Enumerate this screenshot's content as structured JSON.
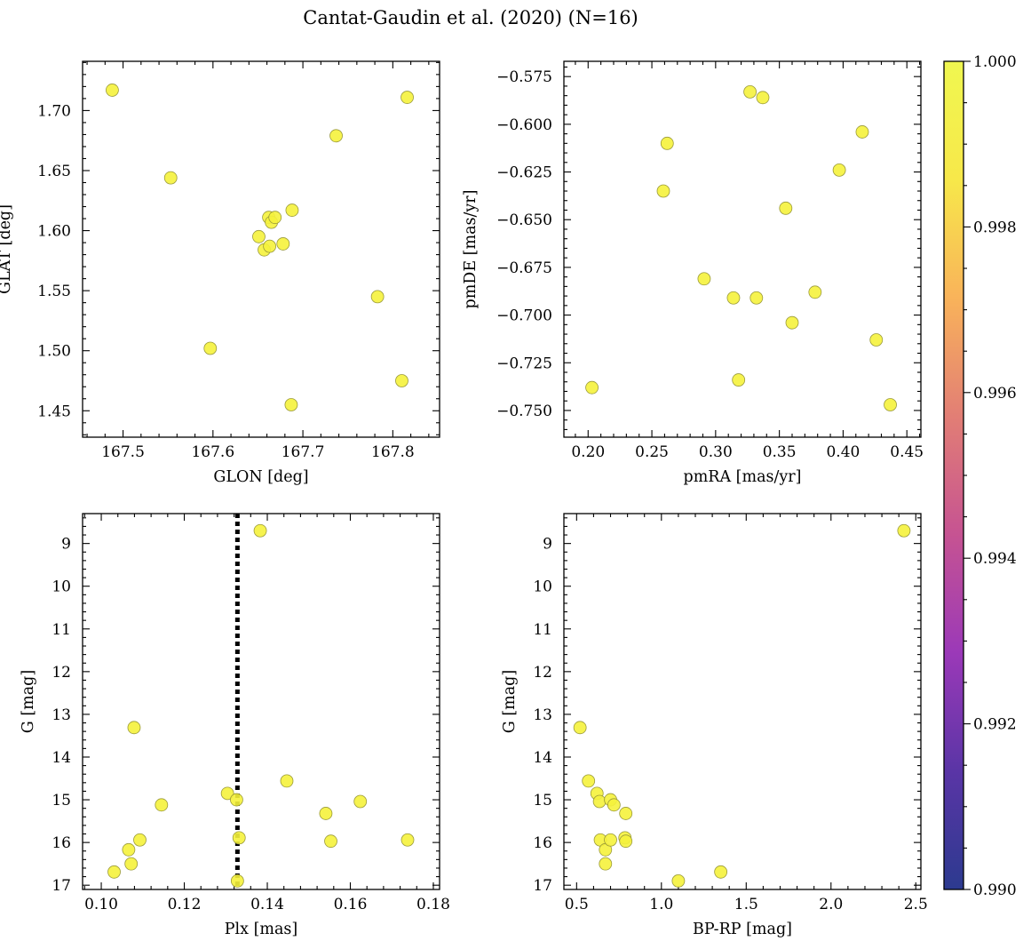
{
  "title": "Cantat-Gaudin et al. (2020) (N=16)",
  "colors": {
    "marker_fill": "#f5f23c",
    "marker_edge": "#9a9a3a",
    "ref_line": "#000000"
  },
  "colorbar": {
    "min": 0.99,
    "max": 1.0,
    "ticks": [
      0.99,
      0.992,
      0.994,
      0.996,
      0.998,
      1.0
    ],
    "labels": [
      "0.990",
      "0.992",
      "0.994",
      "0.996",
      "0.998",
      "1.000"
    ],
    "colormap": "plasma",
    "stops": [
      "#2c3a8f",
      "#5a35a6",
      "#9b39b8",
      "#c65392",
      "#e27e75",
      "#f9b35a",
      "#f7e84a",
      "#f0f750"
    ]
  },
  "chart_data": [
    {
      "type": "scatter",
      "xlabel": "GLON [deg]",
      "ylabel": "GLAT [deg]",
      "xlim": [
        167.455,
        167.852
      ],
      "ylim": [
        1.428,
        1.741
      ],
      "xticks": [
        167.5,
        167.6,
        167.7,
        167.8
      ],
      "xtick_labels": [
        "167.5",
        "167.6",
        "167.7",
        "167.8"
      ],
      "yticks": [
        1.45,
        1.5,
        1.55,
        1.6,
        1.65,
        1.7
      ],
      "ytick_labels": [
        "1.45",
        "1.50",
        "1.55",
        "1.60",
        "1.65",
        "1.70"
      ],
      "x": [
        167.488,
        167.553,
        167.597,
        167.651,
        167.657,
        167.662,
        167.663,
        167.665,
        167.669,
        167.678,
        167.687,
        167.688,
        167.737,
        167.783,
        167.81,
        167.816
      ],
      "y": [
        1.717,
        1.644,
        1.502,
        1.595,
        1.584,
        1.611,
        1.587,
        1.607,
        1.611,
        1.589,
        1.455,
        1.617,
        1.679,
        1.545,
        1.475,
        1.711
      ]
    },
    {
      "type": "scatter",
      "xlabel": "pmRA [mas/yr]",
      "ylabel": "pmDE [mas/yr]",
      "xlim": [
        0.181,
        0.461
      ],
      "ylim": [
        -0.764,
        -0.567
      ],
      "xticks": [
        0.2,
        0.25,
        0.3,
        0.35,
        0.4,
        0.45
      ],
      "xtick_labels": [
        "0.20",
        "0.25",
        "0.30",
        "0.35",
        "0.40",
        "0.45"
      ],
      "yticks": [
        -0.75,
        -0.725,
        -0.7,
        -0.675,
        -0.65,
        -0.625,
        -0.6,
        -0.575
      ],
      "ytick_labels": [
        "−0.750",
        "−0.725",
        "−0.700",
        "−0.675",
        "−0.650",
        "−0.625",
        "−0.600",
        "−0.575"
      ],
      "x": [
        0.203,
        0.259,
        0.262,
        0.291,
        0.314,
        0.318,
        0.327,
        0.332,
        0.337,
        0.355,
        0.36,
        0.378,
        0.397,
        0.415,
        0.426,
        0.437
      ],
      "y": [
        -0.738,
        -0.635,
        -0.61,
        -0.681,
        -0.691,
        -0.734,
        -0.583,
        -0.691,
        -0.586,
        -0.644,
        -0.704,
        -0.688,
        -0.624,
        -0.604,
        -0.713,
        -0.747
      ]
    },
    {
      "type": "scatter",
      "xlabel": "Plx [mas]",
      "ylabel": "G [mag]",
      "xlim": [
        0.0955,
        0.1815
      ],
      "ylim": [
        17.1,
        8.3
      ],
      "y_inverted": true,
      "xticks": [
        0.1,
        0.12,
        0.14,
        0.16,
        0.18
      ],
      "xtick_labels": [
        "0.10",
        "0.12",
        "0.14",
        "0.16",
        "0.18"
      ],
      "yticks": [
        9,
        10,
        11,
        12,
        13,
        14,
        15,
        16,
        17
      ],
      "ytick_labels": [
        "9",
        "10",
        "11",
        "12",
        "13",
        "14",
        "15",
        "16",
        "17"
      ],
      "vline": 0.1328,
      "x": [
        0.1031,
        0.1066,
        0.1072,
        0.1079,
        0.1093,
        0.1145,
        0.1304,
        0.1326,
        0.1328,
        0.1332,
        0.1383,
        0.1447,
        0.1541,
        0.1553,
        0.1624,
        0.1738
      ],
      "y": [
        16.69,
        16.17,
        16.5,
        13.31,
        15.94,
        15.12,
        14.85,
        15.0,
        16.9,
        15.89,
        8.7,
        14.56,
        15.32,
        15.97,
        15.04,
        15.94
      ]
    },
    {
      "type": "scatter",
      "xlabel": "BP-RP [mag]",
      "ylabel": "G [mag]",
      "xlim": [
        0.425,
        2.53
      ],
      "ylim": [
        17.1,
        8.3
      ],
      "y_inverted": true,
      "xticks": [
        0.5,
        1.0,
        1.5,
        2.0,
        2.5
      ],
      "xtick_labels": [
        "0.5",
        "1.0",
        "1.5",
        "2.0",
        "2.5"
      ],
      "yticks": [
        9,
        10,
        11,
        12,
        13,
        14,
        15,
        16,
        17
      ],
      "ytick_labels": [
        "9",
        "10",
        "11",
        "12",
        "13",
        "14",
        "15",
        "16",
        "17"
      ],
      "x": [
        0.52,
        0.57,
        0.62,
        0.635,
        0.64,
        0.67,
        0.67,
        0.7,
        0.7,
        0.72,
        0.785,
        0.79,
        0.79,
        1.1,
        1.35,
        2.43
      ],
      "y": [
        13.31,
        14.56,
        14.85,
        15.04,
        15.94,
        16.17,
        16.5,
        15.0,
        15.94,
        15.12,
        15.89,
        15.97,
        15.32,
        16.9,
        16.69,
        8.7
      ]
    }
  ]
}
